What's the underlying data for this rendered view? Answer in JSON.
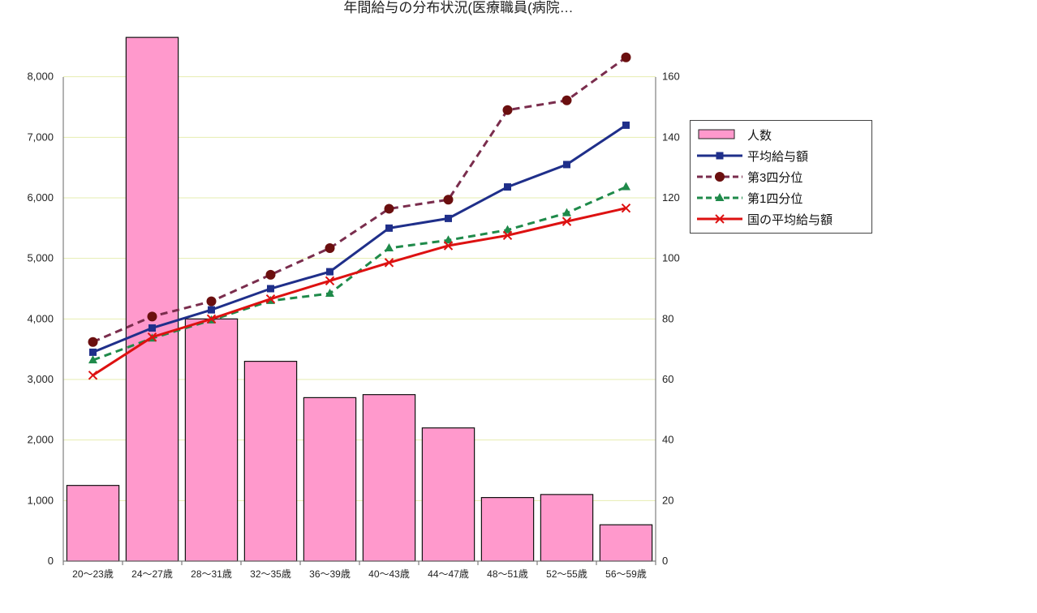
{
  "chart_title": "年間給与の分布状況(医療職員(病院…",
  "chart_data": {
    "type": "bar",
    "title": "年間給与の分布状況(医療職員(病院…",
    "xlabel": "",
    "ylabel_left": "",
    "ylabel_right": "",
    "categories": [
      "20～23歳",
      "24～27歳",
      "28～31歳",
      "32～35歳",
      "36～39歳",
      "40～43歳",
      "44～47歳",
      "48～51歳",
      "52～55歳",
      "56～59歳"
    ],
    "left_axis": {
      "ylim": [
        0,
        9000
      ],
      "ticks": [
        "0",
        "1,000",
        "2,000",
        "3,000",
        "4,000",
        "5,000",
        "6,000",
        "7,000",
        "8,000"
      ]
    },
    "right_axis": {
      "ylim": [
        0,
        180
      ],
      "ticks": [
        "0",
        "20",
        "40",
        "60",
        "80",
        "100",
        "120",
        "140",
        "160"
      ]
    },
    "bar_series": {
      "name": "人数",
      "axis": "right",
      "color": "#ff99cc",
      "values": [
        25,
        173,
        80,
        66,
        54,
        55,
        44,
        21,
        22,
        12
      ]
    },
    "series": [
      {
        "name": "平均給与額",
        "axis": "left",
        "color": "#1f2f8a",
        "marker": "square",
        "dash": "solid",
        "values": [
          3450,
          3850,
          4150,
          4500,
          4780,
          5500,
          5660,
          6180,
          6550,
          7200
        ]
      },
      {
        "name": "第3四分位",
        "axis": "left",
        "color": "#7a2d4d",
        "marker": "circle",
        "dash": "dashed",
        "values": [
          3620,
          4040,
          4290,
          4730,
          5170,
          5820,
          5970,
          7450,
          7610,
          8320
        ]
      },
      {
        "name": "第1四分位",
        "axis": "left",
        "color": "#1f8a4a",
        "marker": "triangle",
        "dash": "dashed",
        "values": [
          3320,
          3680,
          3980,
          4300,
          4420,
          5170,
          5300,
          5470,
          5750,
          6180
        ]
      },
      {
        "name": "国の平均給与額",
        "axis": "left",
        "color": "#dd1111",
        "marker": "cross",
        "dash": "solid",
        "values": [
          3070,
          3700,
          4000,
          4330,
          4630,
          4930,
          5210,
          5380,
          5610,
          5830
        ]
      }
    ],
    "grid": true,
    "legend_position": "right"
  }
}
